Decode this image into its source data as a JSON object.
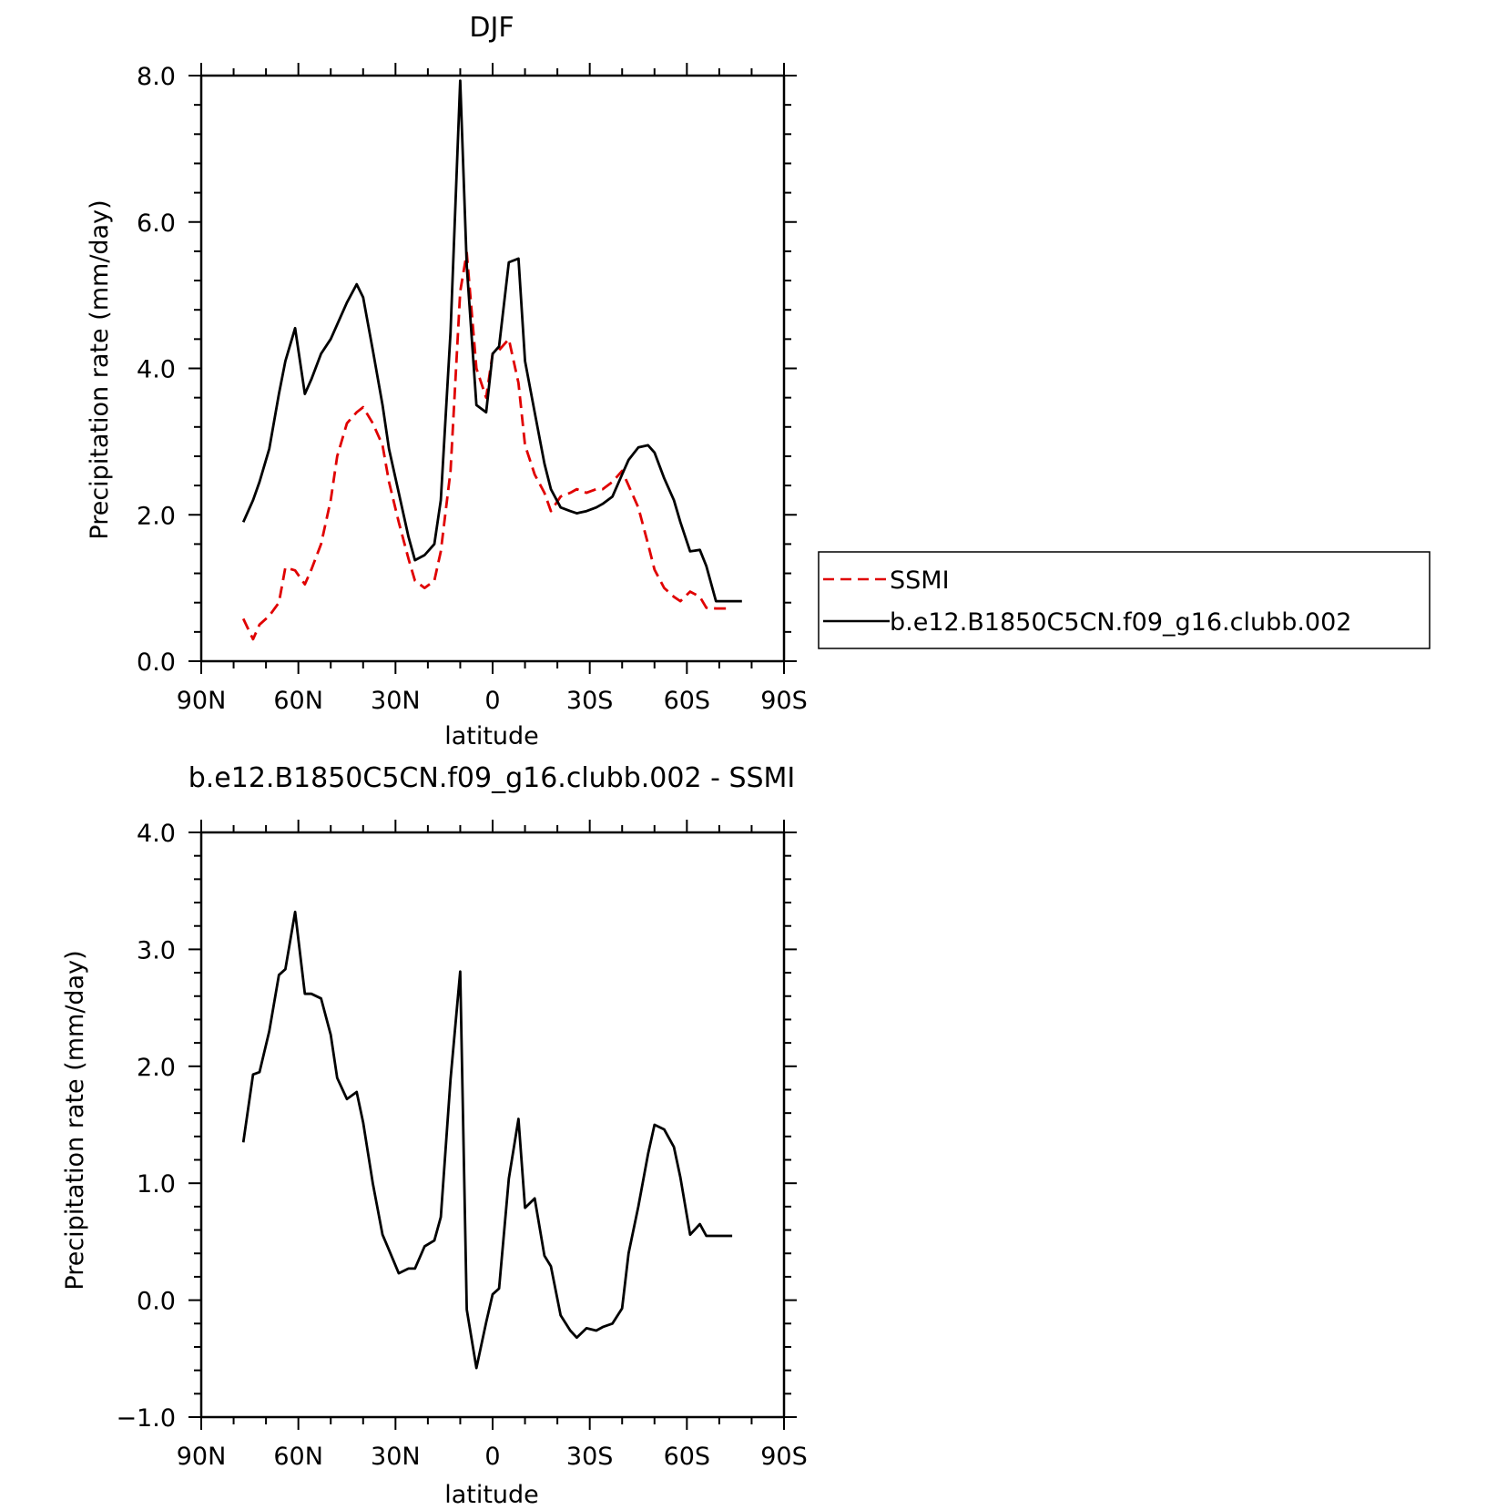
{
  "chart_data": [
    {
      "type": "line",
      "title": "DJF",
      "xlabel": "latitude",
      "ylabel": "Precipitation rate (mm/day)",
      "xlim": [
        -90,
        90
      ],
      "ylim": [
        0,
        8
      ],
      "x_ticks": [
        -90,
        -60,
        -30,
        0,
        30,
        60,
        90
      ],
      "x_tick_labels": [
        "90N",
        "60N",
        "30N",
        "0",
        "30S",
        "60S",
        "90S"
      ],
      "y_ticks": [
        0,
        2,
        4,
        6,
        8
      ],
      "y_tick_labels": [
        "0.0",
        "2.0",
        "4.0",
        "6.0",
        "8.0"
      ],
      "legend": {
        "position": "right"
      },
      "series": [
        {
          "name": "SSMI",
          "color": "#e00000",
          "dash": true,
          "x": [
            -77,
            -74,
            -72,
            -69,
            -66,
            -64,
            -61,
            -58,
            -56,
            -53,
            -50,
            -48,
            -45,
            -42,
            -40,
            -37,
            -34,
            -32,
            -29,
            -26,
            -24,
            -21,
            -18,
            -16,
            -13,
            -10,
            -8,
            -5,
            -2,
            0,
            2,
            5,
            8,
            10,
            13,
            16,
            18,
            21,
            24,
            26,
            29,
            32,
            34,
            37,
            40,
            42,
            45,
            48,
            50,
            53,
            56,
            58,
            61,
            64,
            66,
            69,
            72,
            74
          ],
          "y": [
            0.58,
            0.3,
            0.5,
            0.62,
            0.8,
            1.28,
            1.24,
            1.05,
            1.25,
            1.6,
            2.2,
            2.8,
            3.25,
            3.4,
            3.47,
            3.25,
            2.95,
            2.45,
            1.9,
            1.4,
            1.1,
            1.0,
            1.1,
            1.5,
            2.6,
            5.05,
            5.58,
            4.0,
            3.6,
            4.2,
            4.25,
            4.4,
            3.8,
            2.95,
            2.55,
            2.3,
            2.05,
            2.25,
            2.3,
            2.35,
            2.3,
            2.35,
            2.35,
            2.45,
            2.6,
            2.4,
            2.1,
            1.6,
            1.25,
            1.0,
            0.88,
            0.82,
            0.95,
            0.88,
            0.73,
            0.72,
            0.72,
            0.72
          ]
        },
        {
          "name": "b.e12.B1850C5CN.f09_g16.clubb.002",
          "color": "#000000",
          "dash": false,
          "x": [
            -77,
            -74,
            -72,
            -69,
            -66,
            -64,
            -61,
            -58,
            -56,
            -53,
            -50,
            -48,
            -45,
            -42,
            -40,
            -37,
            -34,
            -32,
            -29,
            -26,
            -24,
            -21,
            -18,
            -16,
            -13,
            -10,
            -8,
            -5,
            -2,
            0,
            2,
            5,
            8,
            10,
            13,
            16,
            18,
            21,
            24,
            26,
            29,
            32,
            34,
            37,
            40,
            42,
            45,
            48,
            50,
            53,
            56,
            58,
            61,
            64,
            66,
            69,
            72,
            74,
            77
          ],
          "y": [
            1.9,
            2.2,
            2.45,
            2.9,
            3.65,
            4.1,
            4.55,
            3.65,
            3.85,
            4.2,
            4.4,
            4.6,
            4.9,
            5.15,
            4.97,
            4.25,
            3.5,
            2.9,
            2.3,
            1.7,
            1.38,
            1.45,
            1.6,
            2.2,
            4.5,
            7.93,
            5.4,
            3.5,
            3.4,
            4.2,
            4.3,
            5.45,
            5.5,
            4.1,
            3.4,
            2.7,
            2.35,
            2.1,
            2.05,
            2.02,
            2.05,
            2.1,
            2.15,
            2.25,
            2.55,
            2.75,
            2.92,
            2.95,
            2.85,
            2.5,
            2.2,
            1.9,
            1.5,
            1.52,
            1.3,
            0.82,
            0.82,
            0.82,
            0.82
          ]
        }
      ]
    },
    {
      "type": "line",
      "title": "b.e12.B1850C5CN.f09_g16.clubb.002 - SSMI",
      "xlabel": "latitude",
      "ylabel": "Precipitation rate (mm/day)",
      "xlim": [
        -90,
        90
      ],
      "ylim": [
        -1,
        4
      ],
      "x_ticks": [
        -90,
        -60,
        -30,
        0,
        30,
        60,
        90
      ],
      "x_tick_labels": [
        "90N",
        "60N",
        "30N",
        "0",
        "30S",
        "60S",
        "90S"
      ],
      "y_ticks": [
        -1,
        0,
        1,
        2,
        3,
        4
      ],
      "y_tick_labels": [
        "−1.0",
        "0.0",
        "1.0",
        "2.0",
        "3.0",
        "4.0"
      ],
      "series": [
        {
          "color": "#000000",
          "dash": false,
          "x": [
            -77,
            -74,
            -72,
            -69,
            -66,
            -64,
            -61,
            -58,
            -56,
            -53,
            -50,
            -48,
            -45,
            -42,
            -40,
            -37,
            -34,
            -32,
            -29,
            -26,
            -24,
            -21,
            -18,
            -16,
            -13,
            -10,
            -8,
            -5,
            -2,
            0,
            2,
            5,
            8,
            10,
            13,
            16,
            18,
            21,
            24,
            26,
            29,
            32,
            34,
            37,
            40,
            42,
            45,
            48,
            50,
            53,
            56,
            58,
            61,
            64,
            66,
            69,
            72,
            74
          ],
          "y": [
            1.35,
            1.93,
            1.95,
            2.3,
            2.78,
            2.83,
            3.32,
            2.62,
            2.62,
            2.58,
            2.27,
            1.9,
            1.72,
            1.78,
            1.52,
            1.0,
            0.56,
            0.43,
            0.23,
            0.27,
            0.27,
            0.46,
            0.51,
            0.71,
            1.89,
            2.81,
            -0.08,
            -0.58,
            -0.19,
            0.05,
            0.1,
            1.04,
            1.55,
            0.79,
            0.87,
            0.38,
            0.29,
            -0.13,
            -0.26,
            -0.32,
            -0.24,
            -0.26,
            -0.23,
            -0.2,
            -0.07,
            0.4,
            0.8,
            1.25,
            1.5,
            1.46,
            1.31,
            1.05,
            0.56,
            0.65,
            0.55,
            0.55,
            0.55,
            0.55
          ]
        }
      ]
    }
  ]
}
